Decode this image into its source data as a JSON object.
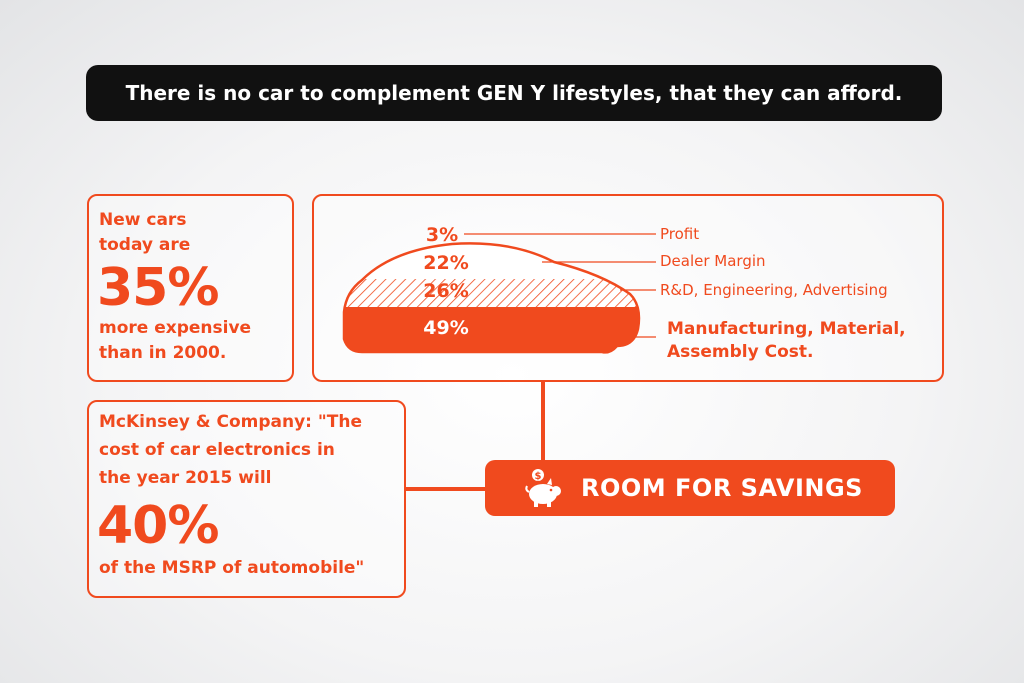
{
  "headline": "There is no car to complement GEN Y lifestyles, that they can afford.",
  "left_stat": {
    "line1": "New cars",
    "line2": "today are",
    "big": "35%",
    "line3": "more expensive",
    "line4": "than in 2000."
  },
  "cost_breakdown": [
    {
      "pct": "3%",
      "label": "Profit"
    },
    {
      "pct": "22%",
      "label": "Dealer Margin"
    },
    {
      "pct": "26%",
      "label": "R&D, Engineering, Advertising"
    },
    {
      "pct": "49%",
      "label_line1": "Manufacturing, Material,",
      "label_line2": "Assembly Cost."
    }
  ],
  "bottom_stat": {
    "line1": "McKinsey & Company: \"The",
    "line2": "cost of car electronics in",
    "line3": "the year 2015 will",
    "big": "40%",
    "line4": "of the MSRP of automobile\""
  },
  "savings_label": "ROOM FOR SAVINGS",
  "colors": {
    "accent": "#f04a1e",
    "dark": "#111111",
    "background": "#f4f4f5"
  },
  "icons": [
    "piggy-bank-icon"
  ]
}
